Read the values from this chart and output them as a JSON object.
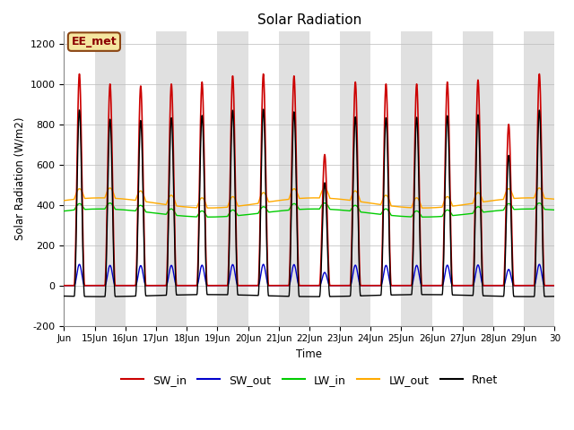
{
  "title": "Solar Radiation",
  "xlabel": "Time",
  "ylabel": "Solar Radiation (W/m2)",
  "ylim": [
    -200,
    1260
  ],
  "yticks": [
    -200,
    0,
    200,
    400,
    600,
    800,
    1000,
    1200
  ],
  "annotation_text": "EE_met",
  "annotation_box_facecolor": "#f5e6a0",
  "annotation_box_edgecolor": "#8B4513",
  "background_color": "#ffffff",
  "plot_bg_color": "#ffffff",
  "band_color": "#e0e0e0",
  "series_colors": {
    "SW_in": "#cc0000",
    "SW_out": "#0000cc",
    "LW_in": "#00cc00",
    "LW_out": "#ffaa00",
    "Rnet": "#000000"
  },
  "n_days": 16,
  "start_day": 14,
  "points_per_day": 288,
  "day_peaks_SW": [
    1050,
    1000,
    990,
    1000,
    1010,
    1040,
    1050,
    1040,
    650,
    1010,
    1000,
    1000,
    1010,
    1020,
    800,
    1050
  ],
  "day_peaks_SWout": [
    105,
    100,
    99,
    100,
    101,
    104,
    105,
    104,
    65,
    101,
    100,
    100,
    101,
    102,
    80,
    105
  ],
  "LW_in_base": 360,
  "LW_in_amp_day": 30,
  "LW_in_slow_amp": 20,
  "LW_out_base": 410,
  "LW_out_amp_day": 50,
  "LW_out_slow_amp": 25
}
